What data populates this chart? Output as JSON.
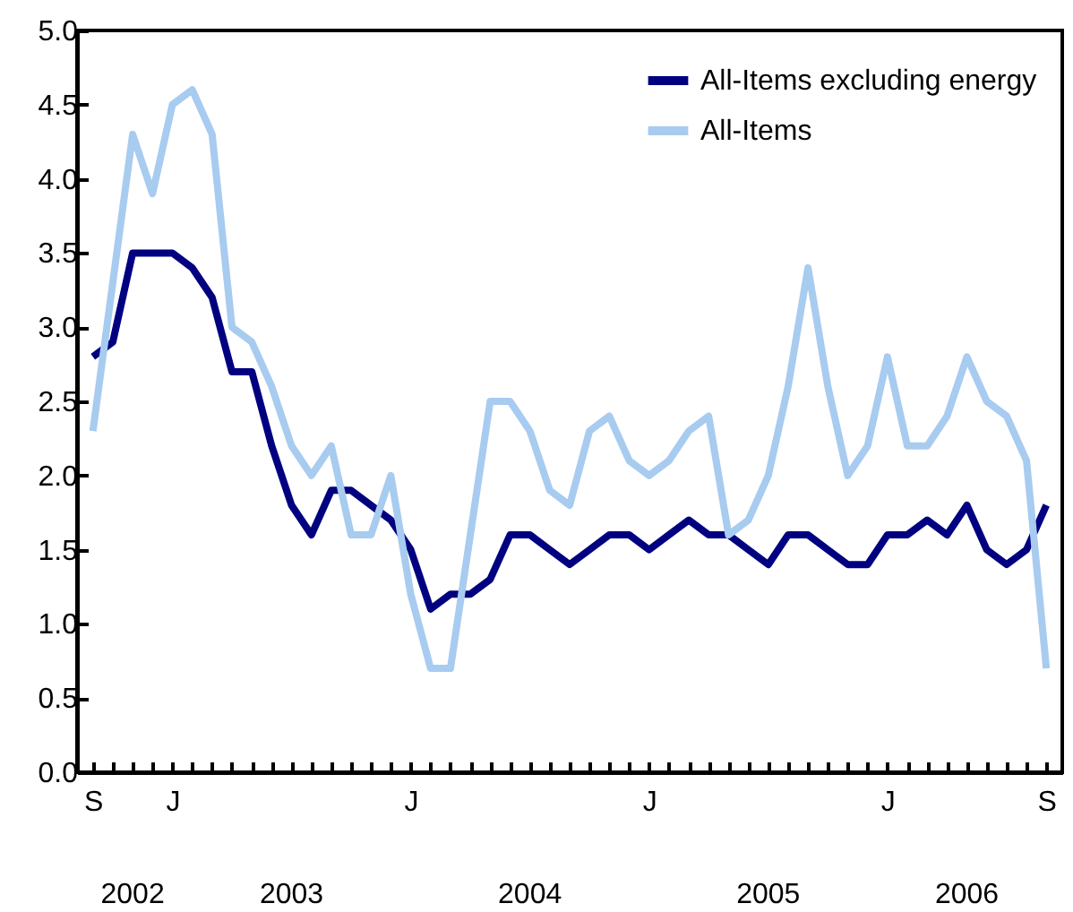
{
  "chart_data": {
    "type": "line",
    "categories": [
      "S",
      null,
      null,
      null,
      "J",
      null,
      null,
      null,
      null,
      null,
      null,
      null,
      null,
      null,
      null,
      null,
      "J",
      null,
      null,
      null,
      null,
      null,
      null,
      null,
      null,
      null,
      null,
      null,
      "J",
      null,
      null,
      null,
      null,
      null,
      null,
      null,
      null,
      null,
      null,
      null,
      "J",
      null,
      null,
      null,
      null,
      null,
      null,
      null,
      "S"
    ],
    "series": [
      {
        "name": "All-Items excluding energy",
        "color": "#000080",
        "values": [
          2.8,
          2.9,
          3.5,
          3.5,
          3.5,
          3.4,
          3.2,
          2.7,
          2.7,
          2.2,
          1.8,
          1.6,
          1.9,
          1.9,
          1.8,
          1.7,
          1.5,
          1.1,
          1.2,
          1.2,
          1.3,
          1.6,
          1.6,
          1.5,
          1.4,
          1.5,
          1.6,
          1.6,
          1.5,
          1.6,
          1.7,
          1.6,
          1.6,
          1.5,
          1.4,
          1.6,
          1.6,
          1.5,
          1.4,
          1.4,
          1.6,
          1.6,
          1.7,
          1.6,
          1.8,
          1.5,
          1.4,
          1.5,
          1.8
        ]
      },
      {
        "name": "All-Items",
        "color": "#a8cbf0",
        "values": [
          2.3,
          3.3,
          4.3,
          3.9,
          4.5,
          4.6,
          4.3,
          3.0,
          2.9,
          2.6,
          2.2,
          2.0,
          2.2,
          1.6,
          1.6,
          2.0,
          1.2,
          0.7,
          0.7,
          1.6,
          2.5,
          2.5,
          2.3,
          1.9,
          1.8,
          2.3,
          2.4,
          2.1,
          2.0,
          2.1,
          2.3,
          2.4,
          1.6,
          1.7,
          2.0,
          2.6,
          3.4,
          2.6,
          2.0,
          2.2,
          2.8,
          2.2,
          2.2,
          2.4,
          2.8,
          2.5,
          2.4,
          2.1,
          0.7
        ]
      }
    ],
    "ylim": [
      0,
      5
    ],
    "yticks": [
      {
        "value": 0,
        "label": "0.0"
      },
      {
        "value": 0.5,
        "label": "0.5"
      },
      {
        "value": 1,
        "label": "1.0"
      },
      {
        "value": 1.5,
        "label": "1.5"
      },
      {
        "value": 2,
        "label": "2.0"
      },
      {
        "value": 2.5,
        "label": "2.5"
      },
      {
        "value": 3,
        "label": "3.0"
      },
      {
        "value": 3.5,
        "label": "3.5"
      },
      {
        "value": 4,
        "label": "4.0"
      },
      {
        "value": 4.5,
        "label": "4.5"
      },
      {
        "value": 5,
        "label": "5.0"
      }
    ],
    "annotations": [
      "2002",
      "2003",
      "2004",
      "2005",
      "2006"
    ],
    "legend": "top right",
    "grid": false,
    "marker": "none",
    "line_style": "solid"
  }
}
